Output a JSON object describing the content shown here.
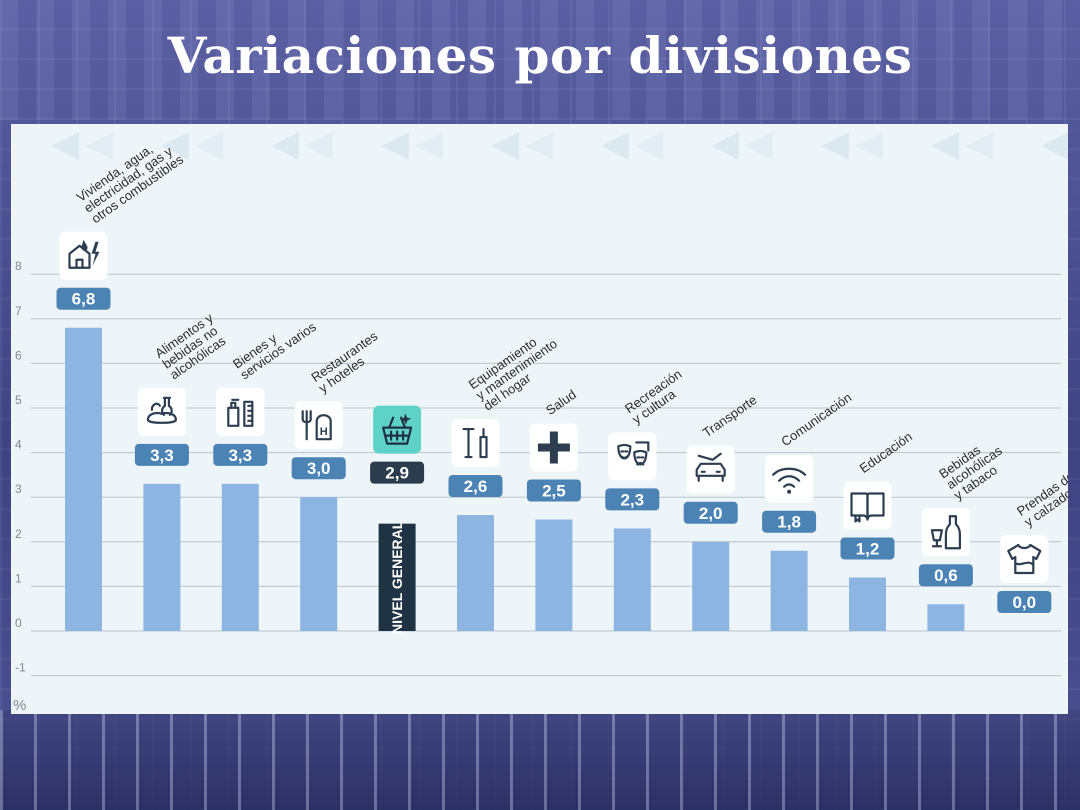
{
  "page": {
    "title": "Variaciones por divisiones"
  },
  "colors": {
    "bar": "#8db5e2",
    "highlight_bar": "#1f3344",
    "label_box": "#4a83b4",
    "highlight_label_box": "#2b3d4d",
    "icon_bg": "#ffffff",
    "highlight_icon_bg": "#5fd2c8",
    "panel": "#eef5f9",
    "grid": "#b8c4cc",
    "axis_text": "#7d8a94"
  },
  "chart_data": {
    "type": "bar",
    "y_unit": "%",
    "ylim": [
      -1,
      8
    ],
    "yticks": [
      -1,
      0,
      1,
      2,
      3,
      4,
      5,
      6,
      7,
      8
    ],
    "grid": true,
    "categories": [
      [
        "Vivienda, agua,",
        "electricidad, gas y",
        "otros combustibles"
      ],
      [
        "Alimentos y",
        "bebidas no",
        "alcohólicas"
      ],
      [
        "Bienes y",
        "servicios varios"
      ],
      [
        "Restaurantes",
        "y hoteles"
      ],
      [],
      [
        "Equipamiento",
        "y mantenimiento",
        "del hogar"
      ],
      [
        "Salud"
      ],
      [
        "Recreación",
        "y cultura"
      ],
      [
        "Transporte"
      ],
      [
        "Comunicación"
      ],
      [
        "Educación"
      ],
      [
        "Bebidas",
        "alcohólicas",
        "y tabaco"
      ],
      [
        "Prendas de vestir",
        "y calzado"
      ]
    ],
    "values": [
      6.8,
      3.3,
      3.3,
      3.0,
      2.9,
      2.6,
      2.5,
      2.3,
      2.0,
      1.8,
      1.2,
      0.6,
      0.0
    ],
    "value_labels": [
      "6,8",
      "3,3",
      "3,3",
      "3,0",
      "2,9",
      "2,6",
      "2,5",
      "2,3",
      "2,0",
      "1,8",
      "1,2",
      "0,6",
      "0,0"
    ],
    "icons": [
      "house-water-bolt-icon",
      "food-icon",
      "personal-care-icon",
      "restaurant-hotel-icon",
      "basket-icon",
      "tools-icon",
      "health-cross-icon",
      "theater-masks-icon",
      "car-icon",
      "wifi-icon",
      "book-icon",
      "bottle-glass-icon",
      "tshirt-icon"
    ],
    "highlight_index": 4,
    "highlight_bar_text": "NIVEL GENERAL"
  }
}
